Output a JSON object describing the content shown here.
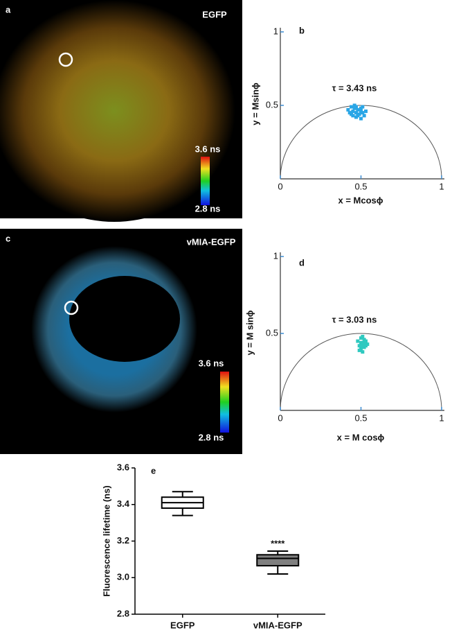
{
  "images": [
    {
      "panel": "a",
      "title": "EGFP",
      "colorbar": {
        "max": "3.6 ns",
        "min": "2.8 ns"
      }
    },
    {
      "panel": "c",
      "title": "vMIA-EGFP",
      "colorbar": {
        "max": "3.6 ns",
        "min": "2.8 ns"
      }
    }
  ],
  "chart_data": [
    {
      "type": "scatter",
      "panel": "b",
      "annotation": "τ = 3.43 ns",
      "x_label": "x = Mcosϕ",
      "y_label": "y = Msinϕ",
      "xlim": [
        0,
        1
      ],
      "ylim": [
        0,
        1
      ],
      "xticks": [
        0,
        0.5,
        1
      ],
      "yticks": [
        0.5,
        1
      ],
      "series": [
        {
          "color": "#2aa6e6",
          "x": [
            0.42,
            0.43,
            0.44,
            0.45,
            0.45,
            0.46,
            0.47,
            0.47,
            0.48,
            0.49,
            0.5,
            0.5,
            0.51,
            0.52,
            0.44,
            0.46,
            0.48,
            0.5,
            0.53,
            0.47,
            0.49,
            0.51
          ],
          "values": [
            0.47,
            0.45,
            0.49,
            0.46,
            0.43,
            0.48,
            0.45,
            0.42,
            0.47,
            0.44,
            0.48,
            0.41,
            0.45,
            0.43,
            0.44,
            0.5,
            0.43,
            0.46,
            0.46,
            0.49,
            0.47,
            0.49
          ]
        }
      ]
    },
    {
      "type": "scatter",
      "panel": "d",
      "annotation": "τ = 3.03 ns",
      "x_label": "x = M cosϕ",
      "y_label": "y = M sinϕ",
      "xlim": [
        0,
        1
      ],
      "ylim": [
        0,
        1
      ],
      "xticks": [
        0,
        0.5,
        1
      ],
      "yticks": [
        0.5,
        1
      ],
      "series": [
        {
          "color": "#2fc9c0",
          "x": [
            0.48,
            0.49,
            0.5,
            0.51,
            0.52,
            0.53,
            0.5,
            0.51,
            0.52,
            0.49,
            0.5,
            0.51,
            0.53,
            0.52,
            0.5,
            0.54
          ],
          "values": [
            0.45,
            0.42,
            0.47,
            0.44,
            0.41,
            0.45,
            0.4,
            0.38,
            0.43,
            0.39,
            0.44,
            0.48,
            0.42,
            0.46,
            0.42,
            0.43
          ]
        }
      ]
    },
    {
      "type": "box",
      "panel": "e",
      "y_label": "Fluorescence lifetime (ns)",
      "categories": [
        "EGFP",
        "vMIA-EGFP"
      ],
      "colors": [
        "#ffffff",
        "#7f7f7f"
      ],
      "values": [
        {
          "min": 3.34,
          "q1": 3.38,
          "median": 3.41,
          "q3": 3.44,
          "max": 3.47
        },
        {
          "min": 3.02,
          "q1": 3.065,
          "median": 3.105,
          "q3": 3.125,
          "max": 3.145
        }
      ],
      "annotations": [
        {
          "x": "vMIA-EGFP",
          "text": "****"
        }
      ],
      "ylim": [
        2.8,
        3.6
      ],
      "yticks": [
        2.8,
        {
          "value": 3,
          "label": "3.0"
        },
        3.2,
        3.4,
        3.6
      ]
    }
  ]
}
